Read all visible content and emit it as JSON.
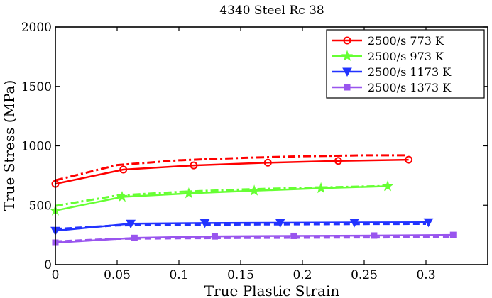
{
  "chart_data": {
    "type": "line",
    "title": "4340 Steel Rc 38",
    "xlabel": "True Plastic Strain",
    "ylabel": "True Stress (MPa)",
    "xlim": [
      0,
      0.35
    ],
    "ylim": [
      0,
      2000
    ],
    "xticks": [
      0,
      0.05,
      0.1,
      0.15,
      0.2,
      0.25,
      0.3
    ],
    "xtick_labels": [
      "0",
      "0.05",
      "0.1",
      "0.15",
      "0.2",
      "0.25",
      "0.3"
    ],
    "yticks": [
      0,
      500,
      1000,
      1500,
      2000
    ],
    "ytick_labels": [
      "0",
      "500",
      "1000",
      "1500",
      "2000"
    ],
    "legend_position": "top-right",
    "grid": false,
    "series": [
      {
        "name": "2500/s 773 K",
        "color": "#ff0000",
        "marker": "circle",
        "style": "solid",
        "x": [
          0,
          0.055,
          0.112,
          0.172,
          0.229,
          0.286
        ],
        "y": [
          680,
          800,
          835,
          858,
          873,
          883
        ]
      },
      {
        "name": "2500/s 973 K",
        "color": "#66ff33",
        "marker": "star",
        "style": "solid",
        "x": [
          0,
          0.054,
          0.108,
          0.161,
          0.215,
          0.269
        ],
        "y": [
          455,
          570,
          600,
          622,
          643,
          660
        ]
      },
      {
        "name": "2500/s 1173 K",
        "color": "#2233ff",
        "marker": "triangle-down",
        "style": "solid",
        "x": [
          0,
          0.061,
          0.121,
          0.182,
          0.242,
          0.302
        ],
        "y": [
          285,
          345,
          350,
          352,
          355,
          357
        ]
      },
      {
        "name": "2500/s 1373 K",
        "color": "#9955ee",
        "marker": "square",
        "style": "solid",
        "x": [
          0,
          0.064,
          0.129,
          0.193,
          0.258,
          0.322
        ],
        "y": [
          185,
          225,
          238,
          242,
          245,
          250
        ]
      },
      {
        "name": "",
        "color": "#ff0000",
        "style": "dashdot",
        "x": [
          0,
          0.05,
          0.1,
          0.15,
          0.2,
          0.25,
          0.283
        ],
        "y": [
          710,
          838,
          878,
          898,
          912,
          920,
          920
        ]
      },
      {
        "name": "",
        "color": "#66ff33",
        "style": "dashdot",
        "x": [
          0,
          0.05,
          0.1,
          0.15,
          0.2,
          0.25,
          0.268
        ],
        "y": [
          495,
          582,
          612,
          632,
          646,
          658,
          662
        ]
      },
      {
        "name": "",
        "color": "#2233ff",
        "style": "dashed",
        "x": [
          0,
          0.05,
          0.1,
          0.15,
          0.2,
          0.25,
          0.3
        ],
        "y": [
          300,
          330,
          335,
          338,
          340,
          342,
          343
        ]
      },
      {
        "name": "",
        "color": "#9955ee",
        "style": "dashed",
        "x": [
          0,
          0.05,
          0.1,
          0.15,
          0.2,
          0.25,
          0.3,
          0.322
        ],
        "y": [
          195,
          218,
          222,
          225,
          227,
          229,
          230,
          231
        ]
      }
    ]
  }
}
